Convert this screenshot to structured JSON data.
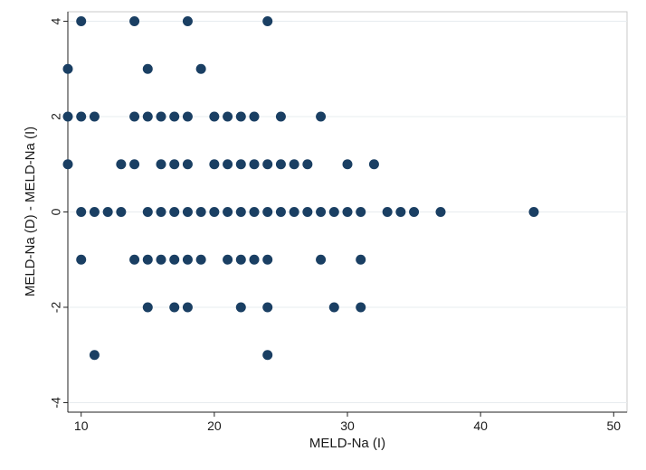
{
  "chart_data": {
    "type": "scatter",
    "title": "",
    "xlabel": "MELD-Na (I)",
    "ylabel": "MELD-Na (D) - MELD-Na (I)",
    "xlim": [
      9,
      51
    ],
    "ylim": [
      -4.2,
      4.2
    ],
    "xticks": [
      10,
      20,
      30,
      40,
      50
    ],
    "yticks": [
      4,
      2,
      0,
      -2,
      -4
    ],
    "grid": "horizontal",
    "marker_color": "#1a3f63",
    "points": [
      {
        "x": 10,
        "y": 4
      },
      {
        "x": 14,
        "y": 4
      },
      {
        "x": 18,
        "y": 4
      },
      {
        "x": 24,
        "y": 4
      },
      {
        "x": 9,
        "y": 3
      },
      {
        "x": 15,
        "y": 3
      },
      {
        "x": 19,
        "y": 3
      },
      {
        "x": 9,
        "y": 2
      },
      {
        "x": 10,
        "y": 2
      },
      {
        "x": 11,
        "y": 2
      },
      {
        "x": 14,
        "y": 2
      },
      {
        "x": 15,
        "y": 2
      },
      {
        "x": 16,
        "y": 2
      },
      {
        "x": 17,
        "y": 2
      },
      {
        "x": 18,
        "y": 2
      },
      {
        "x": 20,
        "y": 2
      },
      {
        "x": 21,
        "y": 2
      },
      {
        "x": 22,
        "y": 2
      },
      {
        "x": 23,
        "y": 2
      },
      {
        "x": 25,
        "y": 2
      },
      {
        "x": 28,
        "y": 2
      },
      {
        "x": 9,
        "y": 1
      },
      {
        "x": 13,
        "y": 1
      },
      {
        "x": 14,
        "y": 1
      },
      {
        "x": 16,
        "y": 1
      },
      {
        "x": 17,
        "y": 1
      },
      {
        "x": 18,
        "y": 1
      },
      {
        "x": 20,
        "y": 1
      },
      {
        "x": 21,
        "y": 1
      },
      {
        "x": 22,
        "y": 1
      },
      {
        "x": 23,
        "y": 1
      },
      {
        "x": 24,
        "y": 1
      },
      {
        "x": 25,
        "y": 1
      },
      {
        "x": 26,
        "y": 1
      },
      {
        "x": 27,
        "y": 1
      },
      {
        "x": 30,
        "y": 1
      },
      {
        "x": 32,
        "y": 1
      },
      {
        "x": 10,
        "y": 0
      },
      {
        "x": 11,
        "y": 0
      },
      {
        "x": 12,
        "y": 0
      },
      {
        "x": 13,
        "y": 0
      },
      {
        "x": 15,
        "y": 0
      },
      {
        "x": 16,
        "y": 0
      },
      {
        "x": 17,
        "y": 0
      },
      {
        "x": 18,
        "y": 0
      },
      {
        "x": 19,
        "y": 0
      },
      {
        "x": 20,
        "y": 0
      },
      {
        "x": 21,
        "y": 0
      },
      {
        "x": 22,
        "y": 0
      },
      {
        "x": 23,
        "y": 0
      },
      {
        "x": 24,
        "y": 0
      },
      {
        "x": 25,
        "y": 0
      },
      {
        "x": 26,
        "y": 0
      },
      {
        "x": 27,
        "y": 0
      },
      {
        "x": 28,
        "y": 0
      },
      {
        "x": 29,
        "y": 0
      },
      {
        "x": 30,
        "y": 0
      },
      {
        "x": 31,
        "y": 0
      },
      {
        "x": 33,
        "y": 0
      },
      {
        "x": 34,
        "y": 0
      },
      {
        "x": 35,
        "y": 0
      },
      {
        "x": 37,
        "y": 0
      },
      {
        "x": 44,
        "y": 0
      },
      {
        "x": 10,
        "y": -1
      },
      {
        "x": 14,
        "y": -1
      },
      {
        "x": 15,
        "y": -1
      },
      {
        "x": 16,
        "y": -1
      },
      {
        "x": 17,
        "y": -1
      },
      {
        "x": 18,
        "y": -1
      },
      {
        "x": 19,
        "y": -1
      },
      {
        "x": 21,
        "y": -1
      },
      {
        "x": 22,
        "y": -1
      },
      {
        "x": 23,
        "y": -1
      },
      {
        "x": 24,
        "y": -1
      },
      {
        "x": 28,
        "y": -1
      },
      {
        "x": 31,
        "y": -1
      },
      {
        "x": 15,
        "y": -2
      },
      {
        "x": 17,
        "y": -2
      },
      {
        "x": 18,
        "y": -2
      },
      {
        "x": 22,
        "y": -2
      },
      {
        "x": 24,
        "y": -2
      },
      {
        "x": 29,
        "y": -2
      },
      {
        "x": 31,
        "y": -2
      },
      {
        "x": 11,
        "y": -3
      },
      {
        "x": 24,
        "y": -3
      }
    ]
  }
}
